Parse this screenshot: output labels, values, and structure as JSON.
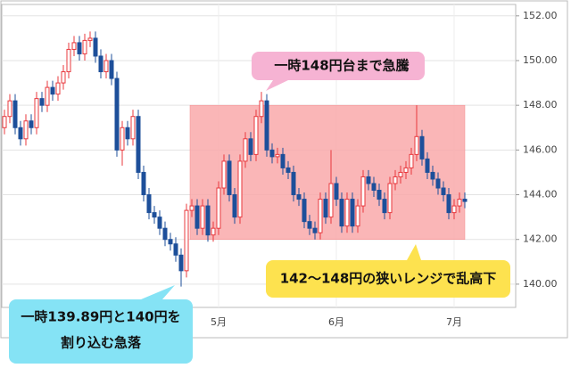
{
  "chart_data": {
    "type": "candlestick",
    "ylim": [
      138.96,
      152.51
    ],
    "yticks": [
      {
        "value": 140,
        "label": "140.00"
      },
      {
        "value": 142,
        "label": "142.00"
      },
      {
        "value": 144,
        "label": "144.00"
      },
      {
        "value": 146,
        "label": "146.00"
      },
      {
        "value": 148,
        "label": "148.00"
      },
      {
        "value": 150,
        "label": "150.00"
      },
      {
        "value": 152,
        "label": "152.00"
      }
    ],
    "grid": true,
    "up_color": "#e8383d",
    "down_color": "#1d4f9a",
    "categories": [
      null,
      null,
      null,
      null,
      null,
      null,
      null,
      null,
      null,
      null,
      null,
      null,
      null,
      null,
      null,
      null,
      null,
      null,
      null,
      null,
      null,
      null,
      null,
      null,
      null,
      null,
      null,
      null,
      null,
      null,
      null,
      null,
      null,
      null,
      null,
      null,
      null,
      null,
      null,
      null,
      "5月",
      null,
      null,
      null,
      null,
      null,
      null,
      null,
      null,
      null,
      null,
      null,
      null,
      null,
      null,
      null,
      null,
      null,
      null,
      null,
      null,
      null,
      "6月",
      null,
      null,
      null,
      null,
      null,
      null,
      null,
      null,
      null,
      null,
      null,
      null,
      null,
      null,
      null,
      null,
      null,
      null,
      null,
      null,
      null,
      "7月",
      null,
      null
    ],
    "ohlc": [
      [
        147.0,
        147.8,
        146.7,
        147.5
      ],
      [
        147.5,
        148.5,
        147.2,
        148.2
      ],
      [
        148.2,
        148.5,
        146.7,
        147.0
      ],
      [
        147.0,
        147.3,
        146.2,
        146.5
      ],
      [
        146.5,
        147.6,
        146.2,
        147.3
      ],
      [
        147.3,
        147.6,
        146.7,
        147.0
      ],
      [
        147.0,
        148.6,
        146.7,
        148.3
      ],
      [
        148.3,
        148.6,
        147.7,
        148.0
      ],
      [
        148.0,
        149.1,
        147.7,
        148.8
      ],
      [
        148.8,
        149.1,
        148.2,
        148.5
      ],
      [
        148.5,
        149.3,
        148.2,
        149.0
      ],
      [
        149.0,
        149.8,
        148.7,
        149.5
      ],
      [
        149.5,
        150.8,
        149.2,
        150.5
      ],
      [
        150.5,
        151.1,
        150.2,
        150.8
      ],
      [
        150.8,
        151.1,
        150.0,
        150.3
      ],
      [
        150.3,
        151.2,
        150.0,
        150.9
      ],
      [
        150.9,
        151.3,
        150.6,
        151.0
      ],
      [
        151.0,
        151.3,
        149.9,
        150.2
      ],
      [
        150.2,
        150.5,
        149.2,
        149.5
      ],
      [
        149.5,
        150.3,
        149.2,
        150.0
      ],
      [
        150.0,
        150.3,
        148.9,
        149.2
      ],
      [
        149.2,
        149.5,
        145.7,
        146.0
      ],
      [
        146.0,
        147.3,
        145.3,
        147.0
      ],
      [
        147.0,
        147.3,
        146.2,
        146.5
      ],
      [
        146.5,
        147.8,
        146.2,
        147.5
      ],
      [
        147.5,
        147.8,
        144.7,
        145.0
      ],
      [
        145.0,
        145.3,
        143.7,
        144.0
      ],
      [
        144.0,
        144.3,
        142.9,
        143.2
      ],
      [
        143.2,
        143.5,
        142.7,
        143.0
      ],
      [
        143.0,
        143.3,
        142.2,
        142.5
      ],
      [
        142.5,
        142.8,
        141.7,
        142.0
      ],
      [
        142.0,
        142.3,
        141.5,
        141.8
      ],
      [
        141.8,
        142.1,
        141.0,
        141.3
      ],
      [
        141.3,
        141.6,
        139.89,
        140.6
      ],
      [
        140.6,
        143.6,
        140.3,
        143.3
      ],
      [
        143.3,
        143.8,
        143.0,
        143.5
      ],
      [
        143.5,
        143.8,
        142.2,
        142.5
      ],
      [
        142.5,
        143.8,
        142.2,
        143.5
      ],
      [
        143.5,
        143.8,
        141.9,
        142.2
      ],
      [
        142.2,
        142.8,
        141.9,
        142.5
      ],
      [
        142.5,
        144.6,
        142.2,
        144.3
      ],
      [
        144.3,
        145.8,
        144.0,
        145.5
      ],
      [
        145.5,
        145.8,
        143.7,
        144.0
      ],
      [
        144.0,
        144.3,
        142.7,
        143.0
      ],
      [
        143.0,
        145.8,
        142.7,
        145.5
      ],
      [
        145.5,
        146.8,
        145.2,
        146.5
      ],
      [
        146.5,
        146.8,
        145.5,
        145.8
      ],
      [
        145.8,
        147.8,
        145.5,
        147.5
      ],
      [
        147.5,
        148.6,
        147.2,
        148.2
      ],
      [
        148.2,
        148.5,
        145.7,
        146.0
      ],
      [
        146.0,
        146.3,
        145.4,
        145.7
      ],
      [
        145.7,
        146.1,
        145.4,
        145.8
      ],
      [
        145.8,
        146.1,
        144.9,
        145.2
      ],
      [
        145.2,
        145.5,
        144.7,
        145.0
      ],
      [
        145.0,
        145.3,
        143.7,
        144.0
      ],
      [
        144.0,
        144.3,
        143.5,
        143.8
      ],
      [
        143.8,
        144.1,
        142.5,
        142.8
      ],
      [
        142.8,
        143.1,
        142.2,
        142.5
      ],
      [
        142.5,
        142.8,
        142.0,
        142.3
      ],
      [
        142.3,
        144.1,
        142.0,
        143.8
      ],
      [
        143.8,
        144.1,
        142.7,
        143.0
      ],
      [
        143.0,
        146.0,
        142.7,
        144.5
      ],
      [
        144.5,
        144.8,
        143.5,
        143.8
      ],
      [
        143.8,
        144.1,
        142.3,
        142.6
      ],
      [
        142.6,
        144.1,
        142.3,
        143.8
      ],
      [
        143.8,
        144.1,
        142.3,
        142.6
      ],
      [
        142.6,
        143.8,
        142.3,
        143.5
      ],
      [
        143.5,
        145.1,
        143.2,
        144.8
      ],
      [
        144.8,
        145.1,
        144.2,
        144.5
      ],
      [
        144.5,
        144.8,
        143.9,
        144.2
      ],
      [
        144.2,
        144.5,
        143.5,
        143.8
      ],
      [
        143.8,
        144.1,
        142.9,
        143.2
      ],
      [
        143.2,
        144.8,
        142.9,
        144.5
      ],
      [
        144.5,
        145.1,
        144.2,
        144.8
      ],
      [
        144.8,
        145.3,
        144.5,
        145.0
      ],
      [
        145.0,
        145.5,
        144.7,
        145.2
      ],
      [
        145.2,
        146.1,
        144.9,
        145.8
      ],
      [
        145.8,
        148.0,
        145.5,
        146.6
      ],
      [
        146.6,
        146.9,
        145.3,
        145.6
      ],
      [
        145.6,
        145.9,
        144.7,
        145.0
      ],
      [
        145.0,
        145.3,
        144.4,
        144.7
      ],
      [
        144.7,
        145.0,
        144.0,
        144.3
      ],
      [
        144.3,
        144.6,
        143.7,
        144.0
      ],
      [
        144.0,
        144.3,
        142.9,
        143.2
      ],
      [
        143.2,
        143.8,
        142.9,
        143.5
      ],
      [
        143.5,
        144.1,
        143.2,
        143.8
      ],
      [
        143.8,
        144.1,
        143.4,
        143.7
      ]
    ],
    "shaded_range": {
      "low": 142,
      "high": 148,
      "start": 35,
      "end": 86,
      "color": "#f9a9aa"
    },
    "annotations": [
      {
        "lines": [
          "一時148円台まで急騰"
        ],
        "color": "#f6b3d3"
      },
      {
        "lines": [
          "142～148円の狭いレンジで乱高下"
        ],
        "color": "#fde24f"
      },
      {
        "lines": [
          "一時139.89円と140円を",
          "割り込む急落"
        ],
        "color": "#85e3f5"
      }
    ]
  }
}
